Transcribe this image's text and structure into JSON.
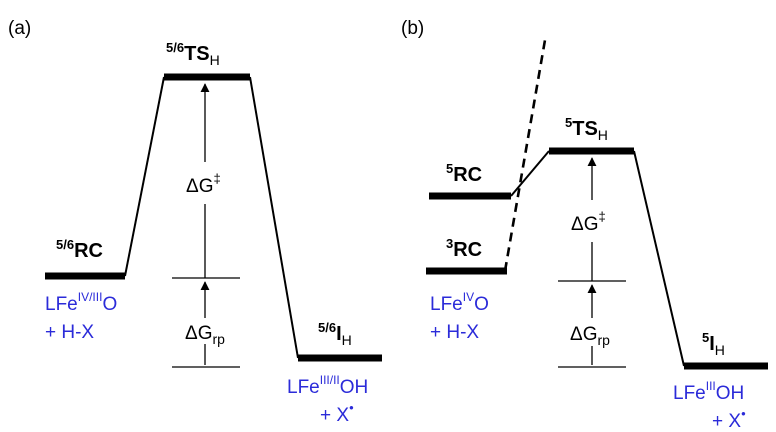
{
  "panel_a": {
    "tag": "(a)",
    "rc": {
      "sup": "5/6",
      "base": "RC"
    },
    "ts": {
      "sup": "5/6",
      "base": "TS",
      "sub": "H"
    },
    "int": {
      "sup": "5/6",
      "base": "I",
      "sub": "H"
    },
    "dg_activation": {
      "delta": "Δ",
      "base": "G",
      "sup": "‡"
    },
    "dg_rp": {
      "delta": "Δ",
      "base": "G",
      "sub": "rp"
    },
    "reactant": {
      "line1_base": "LFe",
      "line1_sup": "IV/III",
      "line1_end": "O",
      "line2": "+ H-X"
    },
    "product": {
      "line1_base": "LFe",
      "line1_sup": "III/II",
      "line1_end": "OH",
      "line2_base": "+ X",
      "line2_sup": "•"
    }
  },
  "panel_b": {
    "tag": "(b)",
    "rc_high": {
      "sup": "5",
      "base": "RC"
    },
    "rc_low": {
      "sup": "3",
      "base": "RC"
    },
    "ts": {
      "sup": "5",
      "base": "TS",
      "sub": "H"
    },
    "int": {
      "sup": "5",
      "base": "I",
      "sub": "H"
    },
    "dg_activation": {
      "delta": "Δ",
      "base": "G",
      "sup": "‡"
    },
    "dg_rp": {
      "delta": "Δ",
      "base": "G",
      "sub": "rp"
    },
    "reactant": {
      "line1_base": "LFe",
      "line1_sup": "IV",
      "line1_end": "O",
      "line2": "+ H-X"
    },
    "product": {
      "line1_base": "LFe",
      "line1_sup": "III",
      "line1_end": "OH",
      "line2_base": "+ X",
      "line2_sup": "•"
    }
  },
  "colors": {
    "species_text": "#2b2bd9",
    "lines": "#000000"
  }
}
